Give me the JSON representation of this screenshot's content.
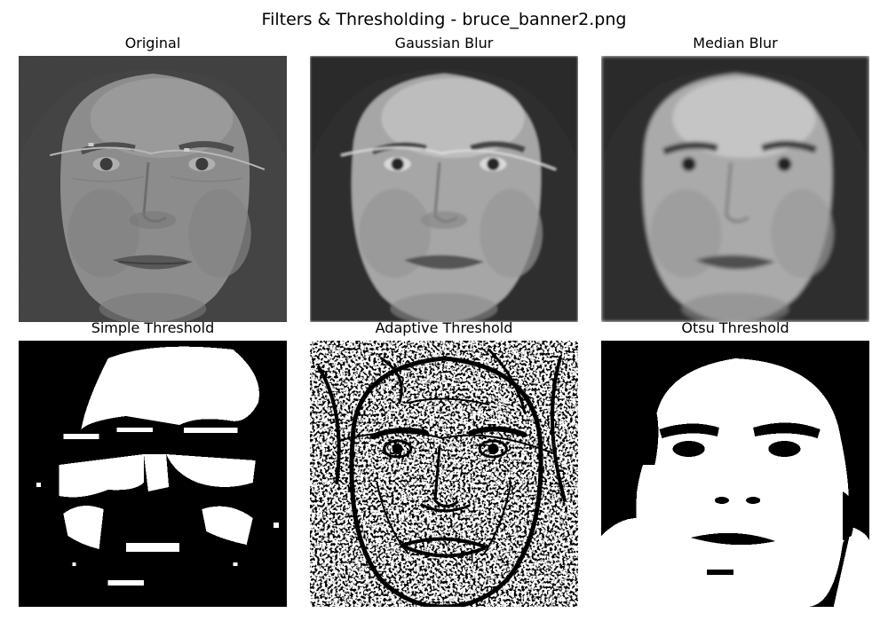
{
  "figure": {
    "title": "Filters & Thresholding - bruce_banner2.png"
  },
  "panels": [
    {
      "title": "Original"
    },
    {
      "title": "Gaussian Blur"
    },
    {
      "title": "Median Blur"
    },
    {
      "title": "Simple Threshold"
    },
    {
      "title": "Adaptive Threshold"
    },
    {
      "title": "Otsu Threshold"
    }
  ]
}
